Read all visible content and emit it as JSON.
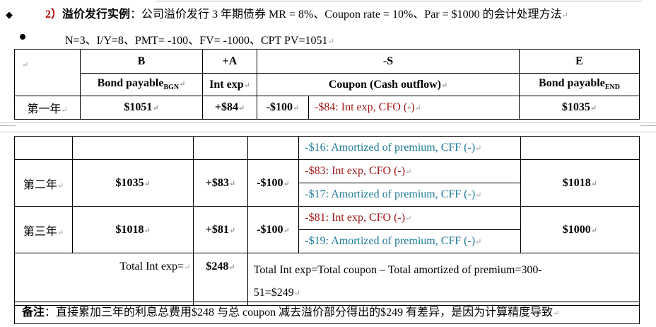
{
  "heading": {
    "bullet": "◆",
    "num": "2）",
    "title": "溢价发行实例",
    "colon": "：",
    "text": "公司溢价发行 3 年期债券 MR = 8%、Coupon rate = 10%、Par = $1000 的会计处理方法",
    "mark": "↵"
  },
  "calc": {
    "text": "N=3、I/Y=8、PMT= -100、FV= -1000、CPT PV=1051",
    "mark": "↵"
  },
  "headers": {
    "b_letter": "B",
    "b_label": "Bond  payable",
    "b_sub": "BGN",
    "a_letter": "+A",
    "a_label": "Int exp",
    "s_letter": "-S",
    "s_label": "Coupon (Cash outflow)",
    "e_letter": "E",
    "e_label": "Bond  payable",
    "e_sub": "END"
  },
  "rows": [
    {
      "year": "第一年",
      "b": "$1051",
      "a": "+$84",
      "s": "-$100",
      "cfo": "-$84: Int exp, CFO (-)",
      "cff": "-$16: Amortized of premium, CFF (-)",
      "e": "$1035"
    },
    {
      "year": "第二年",
      "b": "$1035",
      "a": "+$83",
      "s": "-$100",
      "cfo": "-$83: Int exp, CFO (-)",
      "cff": "-$17: Amortized of premium, CFF (-)",
      "e": "$1018"
    },
    {
      "year": "第三年",
      "b": "$1018",
      "a": "+$81",
      "s": "-$100",
      "cfo": "-$81: Int exp, CFO (-)",
      "cff": "-$19: Amortized of premium, CFF (-)",
      "e": "$1000"
    }
  ],
  "total": {
    "label": "Total Int exp=",
    "value": "$248",
    "formula_1": "Total Int exp=Total coupon – Total amortized of premium=300-",
    "formula_2": "51=$249"
  },
  "note": {
    "label": "备注",
    "text": "：直接累加三年的利息总费用$248 与总 coupon 减去溢价部分得出的$249 有差异，是因为计算精度导致"
  },
  "mark": "↵"
}
